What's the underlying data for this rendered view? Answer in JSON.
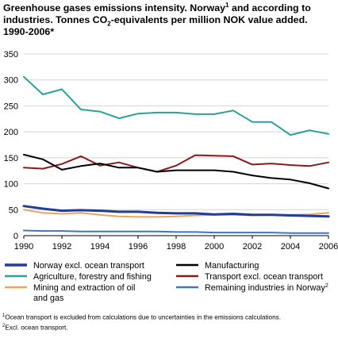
{
  "chart_data": {
    "type": "line",
    "title_parts": {
      "t1": "Greenhouse gases emissions intensity. Norway",
      "sup1": "1",
      "t2": " and according to industries. Tonnes CO",
      "sub": "2",
      "t3": "-equivalents per million NOK value added. 1990-2006*"
    },
    "x": [
      1990,
      1991,
      1992,
      1993,
      1994,
      1995,
      1996,
      1997,
      1998,
      1999,
      2000,
      2001,
      2002,
      2003,
      2004,
      2005,
      2006
    ],
    "xticks": [
      1990,
      1992,
      1994,
      1996,
      1998,
      2000,
      2002,
      2004,
      2006
    ],
    "yticks": [
      0,
      50,
      100,
      150,
      200,
      250,
      300,
      350
    ],
    "ylim": [
      0,
      350
    ],
    "grid": true,
    "legend_position": "bottom",
    "series": [
      {
        "name": "Norway excl. ocean transport",
        "sup": "",
        "color": "#1f3d99",
        "width": 3,
        "values": [
          57,
          52,
          48,
          49,
          48,
          46,
          46,
          44,
          43,
          43,
          41,
          42,
          40,
          40,
          39,
          38,
          37
        ]
      },
      {
        "name": "Manufacturing",
        "sup": "",
        "color": "#000000",
        "width": 2,
        "values": [
          156,
          147,
          127,
          134,
          139,
          131,
          131,
          123,
          126,
          126,
          126,
          123,
          116,
          111,
          108,
          101,
          91
        ]
      },
      {
        "name": "Agriculture, forestry and fishing",
        "sup": "",
        "color": "#2aa198",
        "width": 2,
        "values": [
          306,
          272,
          282,
          243,
          239,
          226,
          235,
          237,
          237,
          234,
          234,
          241,
          219,
          219,
          194,
          203,
          196
        ]
      },
      {
        "name": "Transport excl. ocean transport",
        "sup": "",
        "color": "#8b1a1a",
        "width": 2,
        "values": [
          131,
          129,
          138,
          153,
          135,
          141,
          131,
          123,
          135,
          155,
          154,
          153,
          137,
          139,
          136,
          134,
          141
        ]
      },
      {
        "name": "Mining and extraction of oil and gas",
        "sup": "",
        "color": "#f0a35e",
        "width": 2,
        "values": [
          50,
          44,
          42,
          44,
          40,
          37,
          36,
          36,
          37,
          39,
          40,
          40,
          39,
          40,
          40,
          41,
          44
        ]
      },
      {
        "name": "Remaining industries in Norway",
        "sup": "2",
        "color": "#3a78c3",
        "width": 2,
        "values": [
          10,
          9,
          9,
          8,
          8,
          8,
          8,
          8,
          7,
          7,
          6,
          6,
          6,
          6,
          5,
          5,
          5
        ]
      }
    ],
    "notes": {
      "n1_sup": "1",
      "n1": "Ocean transport is excluded from calculations due to uncertainties in the emissions calculations.",
      "n2_sup": "2",
      "n2": "Excl. ocean transport."
    }
  }
}
